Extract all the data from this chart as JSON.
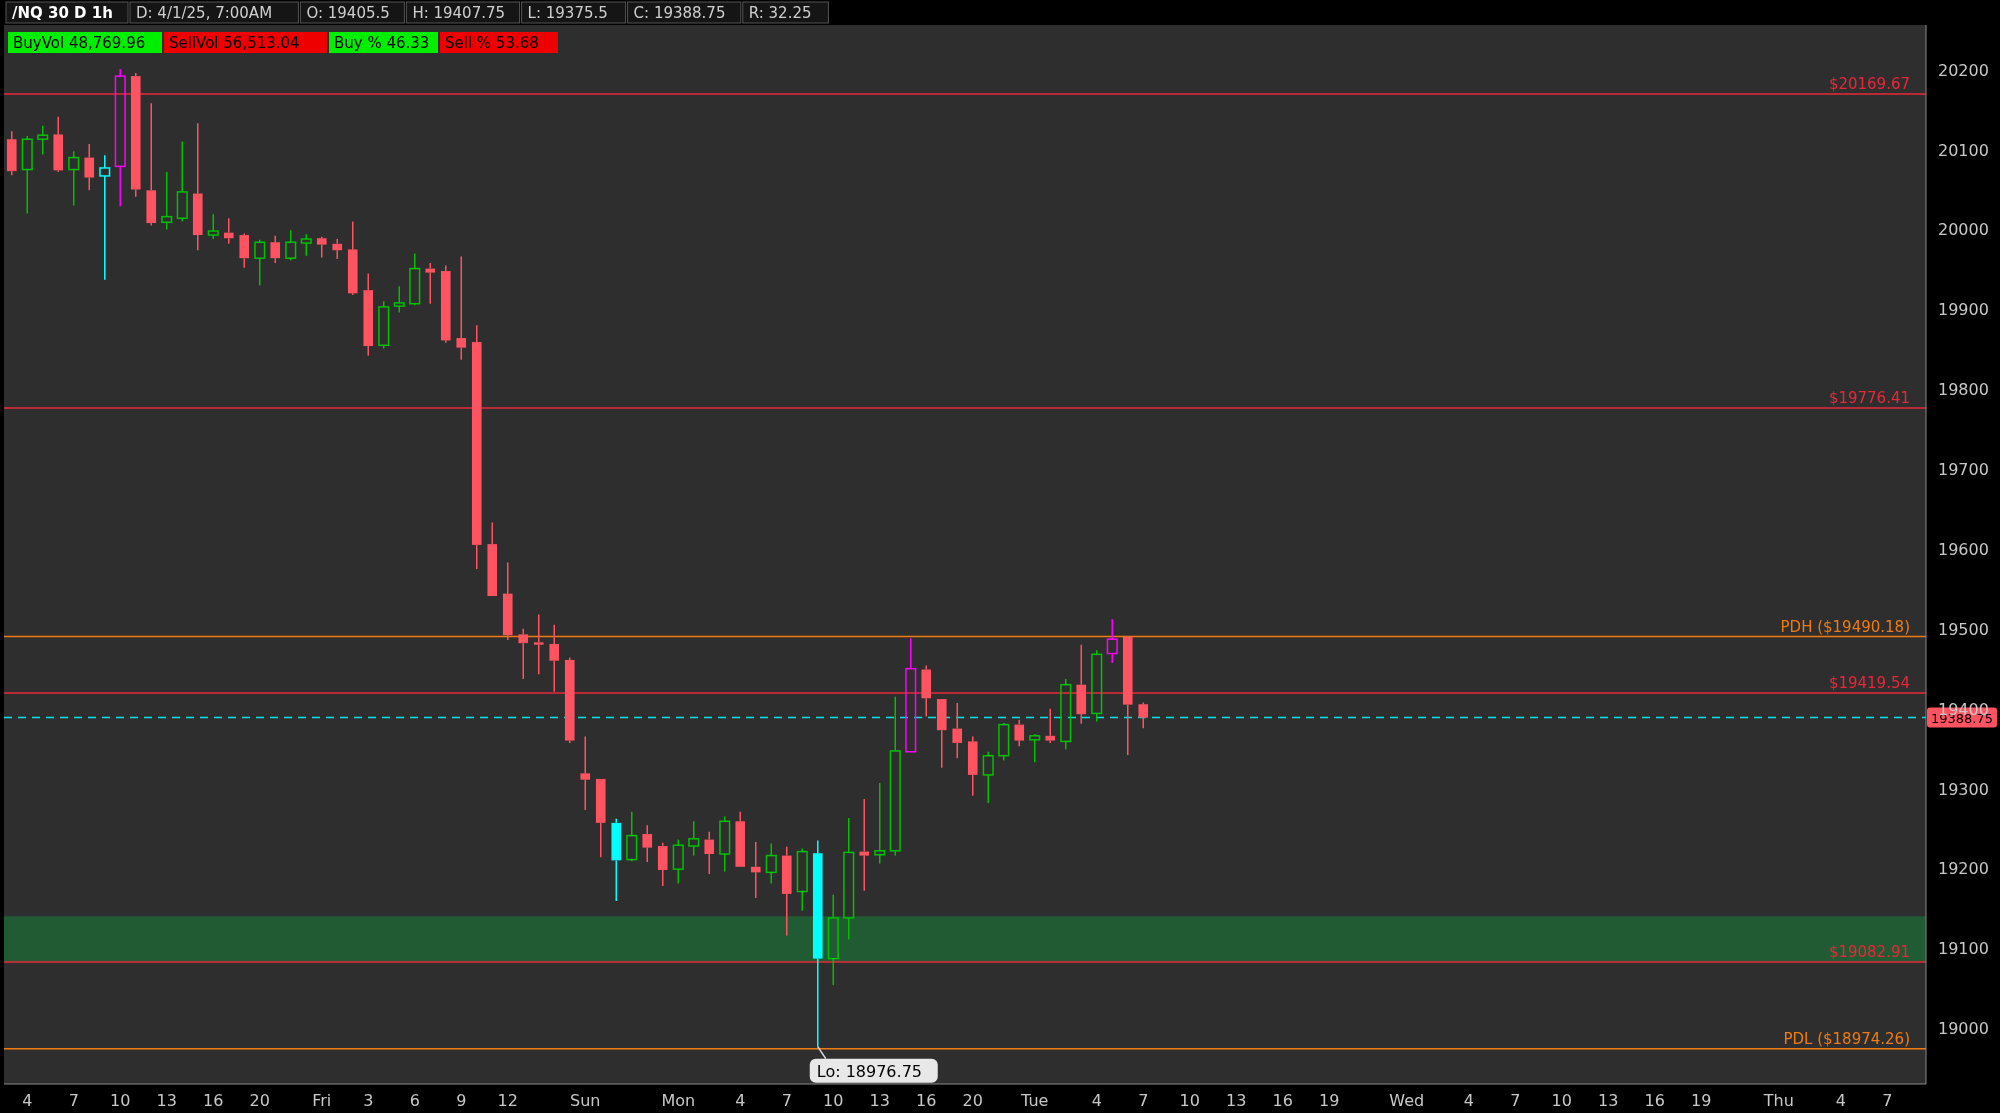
{
  "chart_data": {
    "type": "candlestick",
    "title": "/NQ 30 D 1h",
    "categories": [
      null,
      "4",
      null,
      null,
      "7",
      null,
      null,
      "10",
      null,
      null,
      "13",
      null,
      null,
      "16",
      null,
      null,
      "20",
      null,
      null,
      null,
      "Fri",
      null,
      null,
      "3",
      null,
      null,
      "6",
      null,
      null,
      "9",
      null,
      null,
      "12",
      null,
      null,
      null,
      null,
      "Sun",
      null,
      null,
      null,
      null,
      null,
      "Mon",
      null,
      null,
      null,
      "4",
      null,
      null,
      "7",
      null,
      null,
      "10",
      null,
      null,
      "13",
      null,
      null,
      "16",
      null,
      null,
      "20",
      null,
      null,
      null,
      "Tue",
      null,
      null,
      null,
      "4",
      null,
      null,
      "7",
      null,
      null,
      "10",
      null,
      null,
      "13",
      null,
      null,
      "16",
      null,
      null,
      "19",
      null,
      null,
      null,
      null,
      "Wed",
      null,
      null,
      null,
      "4",
      null,
      null,
      "7",
      null,
      null,
      "10",
      null,
      null,
      "13",
      null,
      null,
      "16",
      null,
      null,
      "19",
      null,
      null,
      null,
      null,
      "Thu",
      null,
      null,
      null,
      "4",
      null,
      null,
      "7",
      null,
      null
    ],
    "ohlc": [
      [
        20113,
        20123,
        20068,
        20073
      ],
      [
        20075,
        20117,
        20020,
        20113
      ],
      [
        20113,
        20130,
        20094,
        20118
      ],
      [
        20119,
        20141,
        20072,
        20074
      ],
      [
        20075,
        20098,
        20030,
        20090
      ],
      [
        20090,
        20107,
        20049,
        20065
      ],
      [
        20067,
        20093,
        19937,
        20077
      ],
      [
        20079,
        20201,
        20029,
        20192
      ],
      [
        20192,
        20196,
        20041,
        20050
      ],
      [
        20049,
        20158,
        20005,
        20008
      ],
      [
        20009,
        20072,
        20000,
        20016
      ],
      [
        20014,
        20110,
        20010,
        20047
      ],
      [
        20045,
        20133,
        19974,
        19993
      ],
      [
        19993,
        20019,
        19988,
        19998
      ],
      [
        19996,
        20014,
        19982,
        19989
      ],
      [
        19993,
        19995,
        19952,
        19964
      ],
      [
        19964,
        19987,
        19930,
        19984
      ],
      [
        19984,
        19992,
        19958,
        19964
      ],
      [
        19964,
        19999,
        19961,
        19984
      ],
      [
        19983,
        19994,
        19967,
        19988
      ],
      [
        19989,
        19991,
        19965,
        19981
      ],
      [
        19982,
        19988,
        19963,
        19974
      ],
      [
        19975,
        20010,
        19918,
        19920
      ],
      [
        19924,
        19945,
        19842,
        19854
      ],
      [
        19855,
        19910,
        19851,
        19903
      ],
      [
        19904,
        19929,
        19896,
        19908
      ],
      [
        19907,
        19970,
        19905,
        19951
      ],
      [
        19951,
        19958,
        19907,
        19946
      ],
      [
        19948,
        19955,
        19858,
        19861
      ],
      [
        19864,
        19966,
        19837,
        19852
      ],
      [
        19859,
        19880,
        19575,
        19605
      ],
      [
        19606,
        19633,
        19541,
        19541
      ],
      [
        19544,
        19583,
        19486,
        19492
      ],
      [
        19493,
        19500,
        19437,
        19482
      ],
      [
        19483,
        19518,
        19443,
        19480
      ],
      [
        19481,
        19505,
        19421,
        19460
      ],
      [
        19461,
        19464,
        19357,
        19360
      ],
      [
        19319,
        19365,
        19273,
        19311
      ],
      [
        19312,
        19312,
        19214,
        19257
      ],
      [
        19257,
        19262,
        19159,
        19210
      ],
      [
        19211,
        19271,
        19209,
        19241
      ],
      [
        19243,
        19254,
        19208,
        19226
      ],
      [
        19228,
        19232,
        19178,
        19198
      ],
      [
        19199,
        19236,
        19181,
        19229
      ],
      [
        19228,
        19259,
        19216,
        19237
      ],
      [
        19236,
        19246,
        19193,
        19218
      ],
      [
        19218,
        19265,
        19196,
        19259
      ],
      [
        19259,
        19271,
        19202,
        19202
      ],
      [
        19202,
        19233,
        19163,
        19195
      ],
      [
        19195,
        19231,
        19181,
        19216
      ],
      [
        19216,
        19227,
        19116,
        19168
      ],
      [
        19171,
        19225,
        19147,
        19221
      ],
      [
        19219,
        19235,
        18976.75,
        19087
      ],
      [
        19087,
        19167,
        19054,
        19138
      ],
      [
        19138,
        19263,
        19111,
        19220
      ],
      [
        19221,
        19287,
        19172,
        19216
      ],
      [
        19217,
        19307,
        19206,
        19222
      ],
      [
        19222,
        19415,
        19216,
        19347
      ],
      [
        19346,
        19488,
        19346,
        19450
      ],
      [
        19449,
        19454,
        19390,
        19413
      ],
      [
        19412,
        19412,
        19326,
        19373
      ],
      [
        19375,
        19407,
        19338,
        19357
      ],
      [
        19359,
        19365,
        19291,
        19317
      ],
      [
        19317,
        19346,
        19282,
        19341
      ],
      [
        19341,
        19382,
        19335,
        19380
      ],
      [
        19380,
        19386,
        19353,
        19360
      ],
      [
        19361,
        19368,
        19333,
        19366
      ],
      [
        19366,
        19400,
        19357,
        19360
      ],
      [
        19359,
        19437,
        19349,
        19430
      ],
      [
        19430,
        19480,
        19381,
        19393
      ],
      [
        19394,
        19473,
        19384,
        19468
      ],
      [
        19469,
        19512,
        19457,
        19487
      ],
      [
        19490,
        19491,
        19342,
        19405
      ],
      [
        19405.5,
        19407.75,
        19375.5,
        19388.75
      ],
      null,
      null,
      null,
      null,
      null,
      null,
      null,
      null,
      null,
      null,
      null,
      null,
      null,
      null,
      null,
      null,
      null,
      null,
      null,
      null,
      null,
      null,
      null,
      null,
      null,
      null,
      null,
      null,
      null,
      null,
      null,
      null,
      null,
      null,
      null,
      null,
      null,
      null,
      null,
      null,
      null,
      null,
      null,
      null,
      null,
      null,
      null,
      null,
      null,
      null
    ],
    "colors": [
      "#ff5361",
      "#00c000",
      "#00c000",
      "#ff5361",
      "#00c000",
      "#ff5361",
      "#00ffff",
      "#ff00ff",
      "#ff5361",
      "#ff5361",
      "#00c000",
      "#00c000",
      "#ff5361",
      "#00c000",
      "#ff5361",
      "#ff5361",
      "#00c000",
      "#ff5361",
      "#00c000",
      "#00c000",
      "#ff5361",
      "#ff5361",
      "#ff5361",
      "#ff5361",
      "#00c000",
      "#00c000",
      "#00c000",
      "#ff5361",
      "#ff5361",
      "#ff5361",
      "#ff5361",
      "#ff5361",
      "#ff5361",
      "#ff5361",
      "#ff5361",
      "#ff5361",
      "#ff5361",
      "#ff5361",
      "#ff5361",
      "#00ffff",
      "#00c000",
      "#ff5361",
      "#ff5361",
      "#00c000",
      "#00c000",
      "#ff5361",
      "#00c000",
      "#ff5361",
      "#ff5361",
      "#00c000",
      "#ff5361",
      "#00c000",
      "#00ffff",
      "#00c000",
      "#00c000",
      "#ff5361",
      "#00c000",
      "#00c000",
      "#ff00ff",
      "#ff5361",
      "#ff5361",
      "#ff5361",
      "#ff5361",
      "#00c000",
      "#00c000",
      "#ff5361",
      "#00c000",
      "#ff5361",
      "#00c000",
      "#ff5361",
      "#00c000",
      "#ff00ff",
      "#ff5361",
      "#ff5361",
      null,
      null,
      null,
      null,
      null,
      null,
      null,
      null,
      null,
      null,
      null,
      null,
      null,
      null,
      null,
      null,
      null,
      null,
      null,
      null,
      null,
      null,
      null,
      null,
      null,
      null,
      null,
      null,
      null,
      null,
      null,
      null,
      null,
      null,
      null,
      null,
      null,
      null,
      null,
      null,
      null,
      null,
      null,
      null,
      null,
      null,
      null,
      null,
      null,
      null
    ],
    "ylim": [
      18930,
      20256
    ],
    "yticks": [
      19000,
      19100,
      19200,
      19300,
      19400,
      19500,
      19600,
      19700,
      19800,
      19900,
      20000,
      20100,
      20200
    ],
    "grid": false,
    "ref_lines": [
      {
        "axis": "y",
        "value": 20169.67,
        "label": "$20169.67",
        "color": "#e8283a"
      },
      {
        "axis": "y",
        "value": 19776.41,
        "label": "$19776.41",
        "color": "#e8283a"
      },
      {
        "axis": "y",
        "value": 19490.18,
        "label": "PDH ($19490.18)",
        "color": "#f07c10"
      },
      {
        "axis": "y",
        "value": 19419.54,
        "label": "$19419.54",
        "color": "#e8283a"
      },
      {
        "axis": "y",
        "value": 19388.75,
        "label": "19388.75",
        "color": "#00e5e5",
        "line_style": "dashed"
      },
      {
        "axis": "y",
        "value": 19082.91,
        "label": "$19082.91",
        "color": "#e8283a"
      },
      {
        "axis": "y",
        "value": 18974.26,
        "label": "PDL ($18974.26)",
        "color": "#f07c10"
      }
    ],
    "bands": [
      {
        "axis": "y",
        "from": 19082.91,
        "to": 19140,
        "color": "#1e6b35"
      }
    ],
    "annotations": [
      "D: 4/1/25, 7:00AM",
      "O: 19405.5",
      "H: 19407.75",
      "L: 19375.5",
      "C: 19388.75",
      "R: 32.25",
      "BuyVol 48,769.96",
      "SellVol 56,513.04",
      "Buy % 46.33",
      "Sell % 53.68",
      {
        "text": "Lo: 18976.75",
        "y": 18976.75
      }
    ]
  }
}
